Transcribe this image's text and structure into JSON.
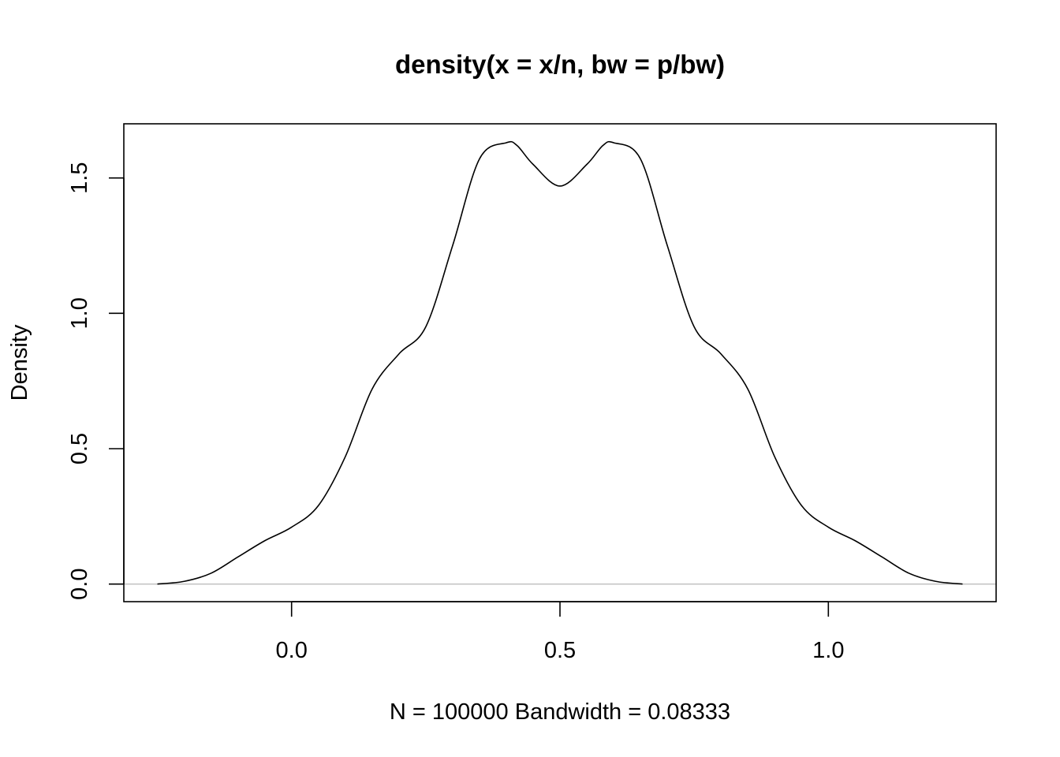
{
  "chart_data": {
    "type": "line",
    "title": "density(x = x/n, bw = p/bw)",
    "xlabel": "N = 100000   Bandwidth = 0.08333",
    "ylabel": "Density",
    "xlim": [
      -0.3125,
      1.3125
    ],
    "ylim": [
      -0.065,
      1.7
    ],
    "x_ticks": [
      0.0,
      0.5,
      1.0
    ],
    "x_tick_labels": [
      "0.0",
      "0.5",
      "1.0"
    ],
    "y_ticks": [
      0.0,
      0.5,
      1.0,
      1.5
    ],
    "y_tick_labels": [
      "0.0",
      "0.5",
      "1.0",
      "1.5"
    ],
    "grid": false,
    "baseline_y": 0,
    "baseline_color": "#bebebe",
    "line_color": "#000000",
    "series": [
      {
        "x": [
          -0.25,
          -0.2,
          -0.15,
          -0.1,
          -0.05,
          0.0,
          0.05,
          0.1,
          0.15,
          0.2,
          0.25,
          0.3,
          0.35,
          0.4,
          0.42,
          0.45,
          0.5,
          0.55,
          0.58,
          0.6,
          0.65,
          0.7,
          0.75,
          0.8,
          0.85,
          0.9,
          0.95,
          1.0,
          1.05,
          1.1,
          1.15,
          1.2,
          1.25
        ],
        "y": [
          0.0,
          0.01,
          0.04,
          0.1,
          0.16,
          0.21,
          0.29,
          0.47,
          0.72,
          0.85,
          0.95,
          1.25,
          1.57,
          1.63,
          1.62,
          1.55,
          1.47,
          1.55,
          1.62,
          1.63,
          1.57,
          1.25,
          0.95,
          0.85,
          0.72,
          0.47,
          0.29,
          0.21,
          0.16,
          0.1,
          0.04,
          0.01,
          0.0
        ]
      }
    ]
  }
}
